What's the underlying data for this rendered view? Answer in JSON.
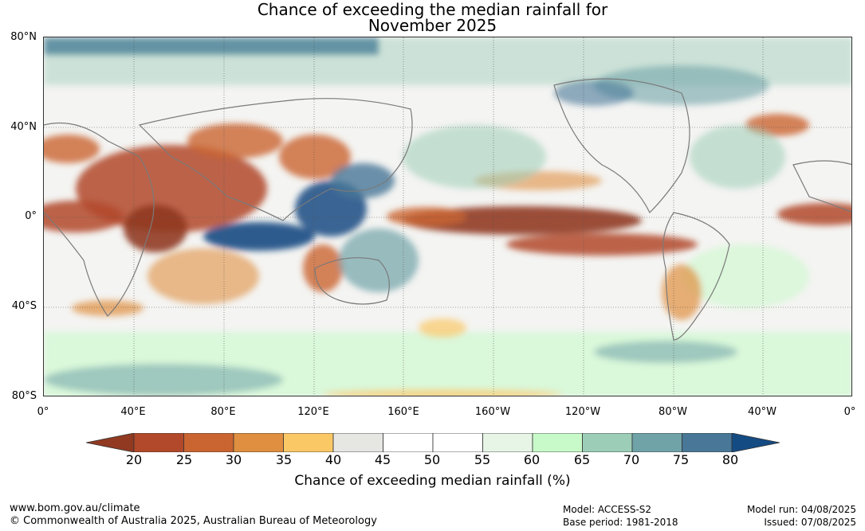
{
  "title": {
    "line1": "Chance of exceeding the median rainfall for",
    "line2": "November 2025"
  },
  "map": {
    "lat_labels": [
      "80°N",
      "40°N",
      "0°",
      "40°S",
      "80°S"
    ],
    "lon_labels": [
      "0°",
      "40°E",
      "80°E",
      "120°E",
      "160°E",
      "160°W",
      "120°W",
      "80°W",
      "40°W",
      "0°"
    ]
  },
  "colorbar": {
    "ticks": [
      "20",
      "25",
      "30",
      "35",
      "40",
      "45",
      "50",
      "55",
      "60",
      "65",
      "70",
      "75",
      "80"
    ],
    "colors": [
      "#913a21",
      "#b2492a",
      "#ca6430",
      "#df8f3f",
      "#fbc866",
      "#e6e6e3",
      "#ffffff",
      "#ffffff",
      "#e7f5e6",
      "#c8fac9",
      "#9ccdb7",
      "#6fa3a8",
      "#487797",
      "#154b83"
    ],
    "label": "Chance of exceeding median rainfall (%)"
  },
  "footer": {
    "website": "www.bom.gov.au/climate",
    "copyright": "© Commonwealth of Australia 2025, Australian Bureau of Meteorology",
    "model": "Model: ACCESS-S2",
    "base_period": "Base period: 1981-2018",
    "model_run": "Model run: 04/08/2025",
    "issued": "Issued: 07/08/2025"
  }
}
